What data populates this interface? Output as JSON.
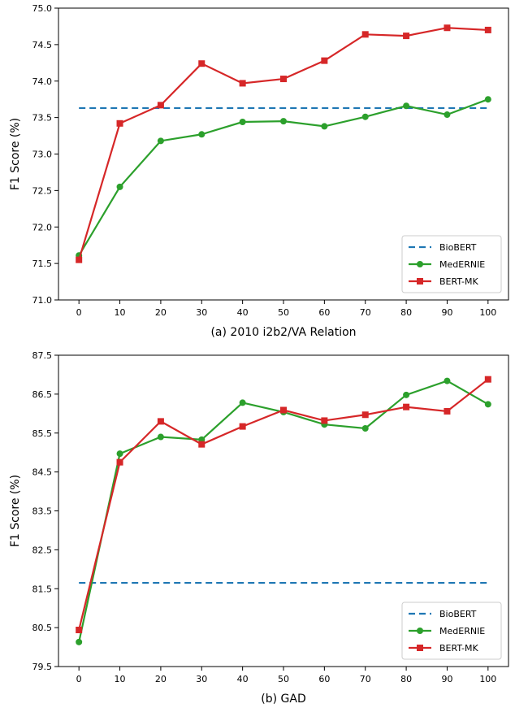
{
  "chart_data": [
    {
      "type": "line",
      "title": "(a) 2010 i2b2/VA Relation",
      "xlabel": "(a) 2010 i2b2/VA Relation",
      "ylabel": "F1 Score (%)",
      "x": [
        0,
        10,
        20,
        30,
        40,
        50,
        60,
        70,
        80,
        90,
        100
      ],
      "x_ticks": [
        "0",
        "10",
        "20",
        "30",
        "40",
        "50",
        "60",
        "70",
        "80",
        "90",
        "100"
      ],
      "ylim": [
        71.0,
        75.0
      ],
      "y_ticks": [
        "71.0",
        "71.5",
        "72.0",
        "72.5",
        "73.0",
        "73.5",
        "74.0",
        "74.5",
        "75.0"
      ],
      "legend_position": "lower-right",
      "grid": false,
      "series": [
        {
          "name": "BioBERT",
          "style": "dashed",
          "color": "#1f77b4",
          "values": [
            73.63,
            73.63,
            73.63,
            73.63,
            73.63,
            73.63,
            73.63,
            73.63,
            73.63,
            73.63,
            73.63
          ]
        },
        {
          "name": "MedERNIE",
          "style": "circle",
          "color": "#2ca02c",
          "values": [
            71.61,
            72.55,
            73.18,
            73.27,
            73.44,
            73.45,
            73.38,
            73.51,
            73.66,
            73.54,
            73.75
          ]
        },
        {
          "name": "BERT-MK",
          "style": "square",
          "color": "#d62728",
          "values": [
            71.55,
            73.42,
            73.67,
            74.24,
            73.97,
            74.03,
            74.28,
            74.64,
            74.62,
            74.73,
            74.7
          ]
        }
      ]
    },
    {
      "type": "line",
      "title": "(b) GAD",
      "xlabel": "(b) GAD",
      "ylabel": "F1 Score (%)",
      "x": [
        0,
        10,
        20,
        30,
        40,
        50,
        60,
        70,
        80,
        90,
        100
      ],
      "x_ticks": [
        "0",
        "10",
        "20",
        "30",
        "40",
        "50",
        "60",
        "70",
        "80",
        "90",
        "100"
      ],
      "ylim": [
        79.5,
        87.5
      ],
      "y_ticks": [
        "79.5",
        "80.5",
        "81.5",
        "82.5",
        "83.5",
        "84.5",
        "85.5",
        "86.5",
        "87.5"
      ],
      "legend_position": "lower-right",
      "grid": false,
      "series": [
        {
          "name": "BioBERT",
          "style": "dashed",
          "color": "#1f77b4",
          "values": [
            81.65,
            81.65,
            81.65,
            81.65,
            81.65,
            81.65,
            81.65,
            81.65,
            81.65,
            81.65,
            81.65
          ]
        },
        {
          "name": "MedERNIE",
          "style": "circle",
          "color": "#2ca02c",
          "values": [
            80.13,
            84.97,
            85.4,
            85.33,
            86.28,
            86.04,
            85.72,
            85.62,
            86.48,
            86.84,
            86.24
          ]
        },
        {
          "name": "BERT-MK",
          "style": "square",
          "color": "#d62728",
          "values": [
            80.44,
            84.75,
            85.8,
            85.21,
            85.67,
            86.09,
            85.82,
            85.97,
            86.17,
            86.06,
            86.88
          ]
        }
      ]
    }
  ]
}
